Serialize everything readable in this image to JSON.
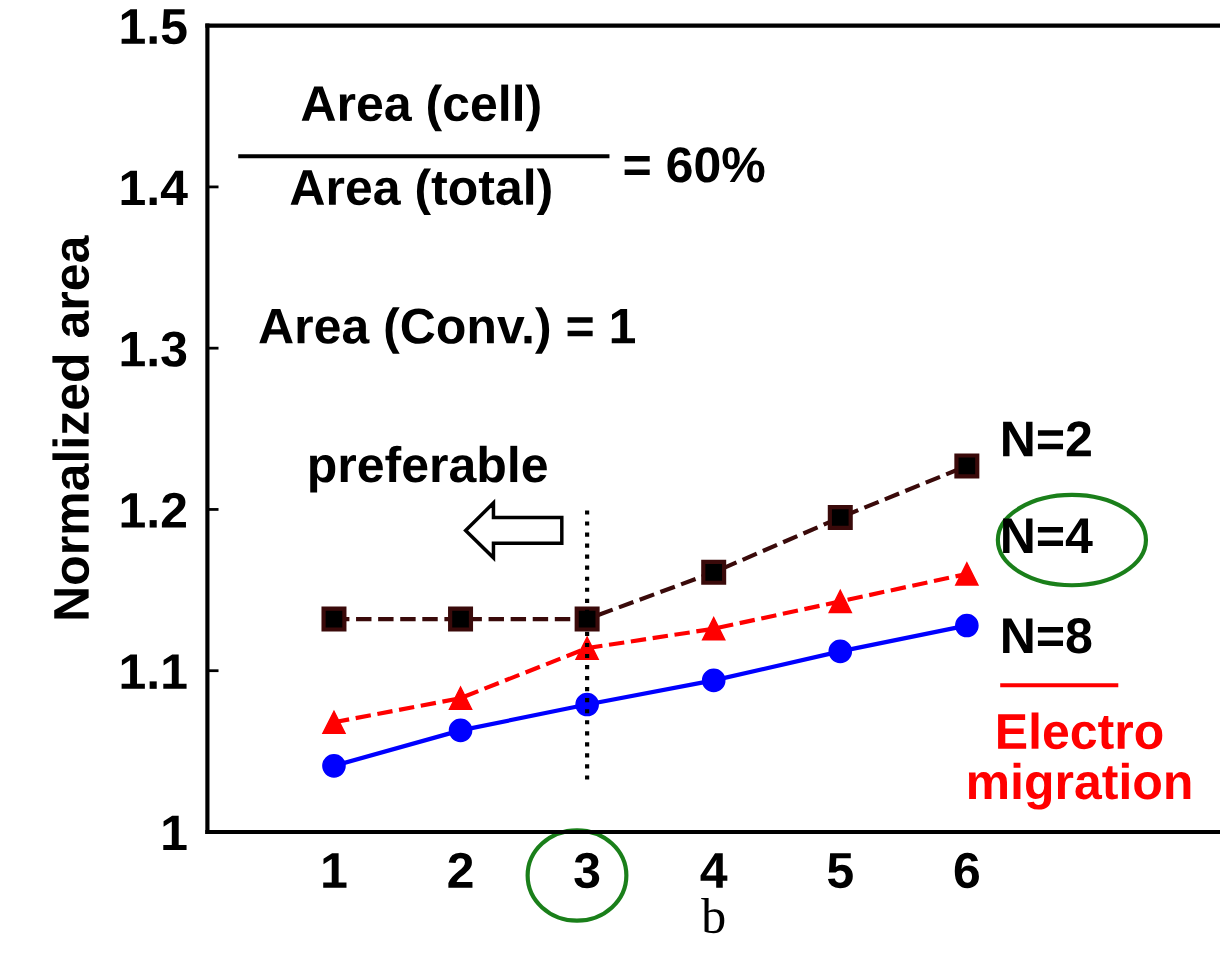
{
  "chart_data": {
    "type": "line",
    "xlabel": "b",
    "ylabel": "Normalized area",
    "x": [
      1,
      2,
      3,
      4,
      5,
      6
    ],
    "xlim": [
      0,
      8
    ],
    "xticks": [
      1,
      2,
      3,
      4,
      5,
      6
    ],
    "ylim": [
      1,
      1.5
    ],
    "yticks": [
      1,
      1.1,
      1.2,
      1.3,
      1.4,
      1.5
    ],
    "grid": false,
    "legend": false,
    "series": [
      {
        "name": "N=2",
        "color": "#3a0a0a",
        "marker": "square",
        "line_style": "dashed",
        "values": [
          1.132,
          1.132,
          1.132,
          1.161,
          1.195,
          1.227
        ]
      },
      {
        "name": "N=4",
        "color": "#ff0000",
        "marker": "triangle",
        "line_style": "dashed",
        "values": [
          1.068,
          1.083,
          1.114,
          1.126,
          1.143,
          1.16
        ]
      },
      {
        "name": "N=8",
        "color": "#0000ff",
        "marker": "circle",
        "line_style": "solid",
        "values": [
          1.041,
          1.063,
          1.079,
          1.094,
          1.112,
          1.128
        ]
      }
    ],
    "ref_lines": [
      {
        "axis": "x",
        "value": 3,
        "label": null,
        "color": "#000000",
        "line_style": "dotted"
      }
    ],
    "annotations": [
      "Area (cell)",
      "Area (total)",
      "= 60%",
      "Area (Conv.) = 1",
      "preferable",
      "Electro\nmigration"
    ]
  }
}
